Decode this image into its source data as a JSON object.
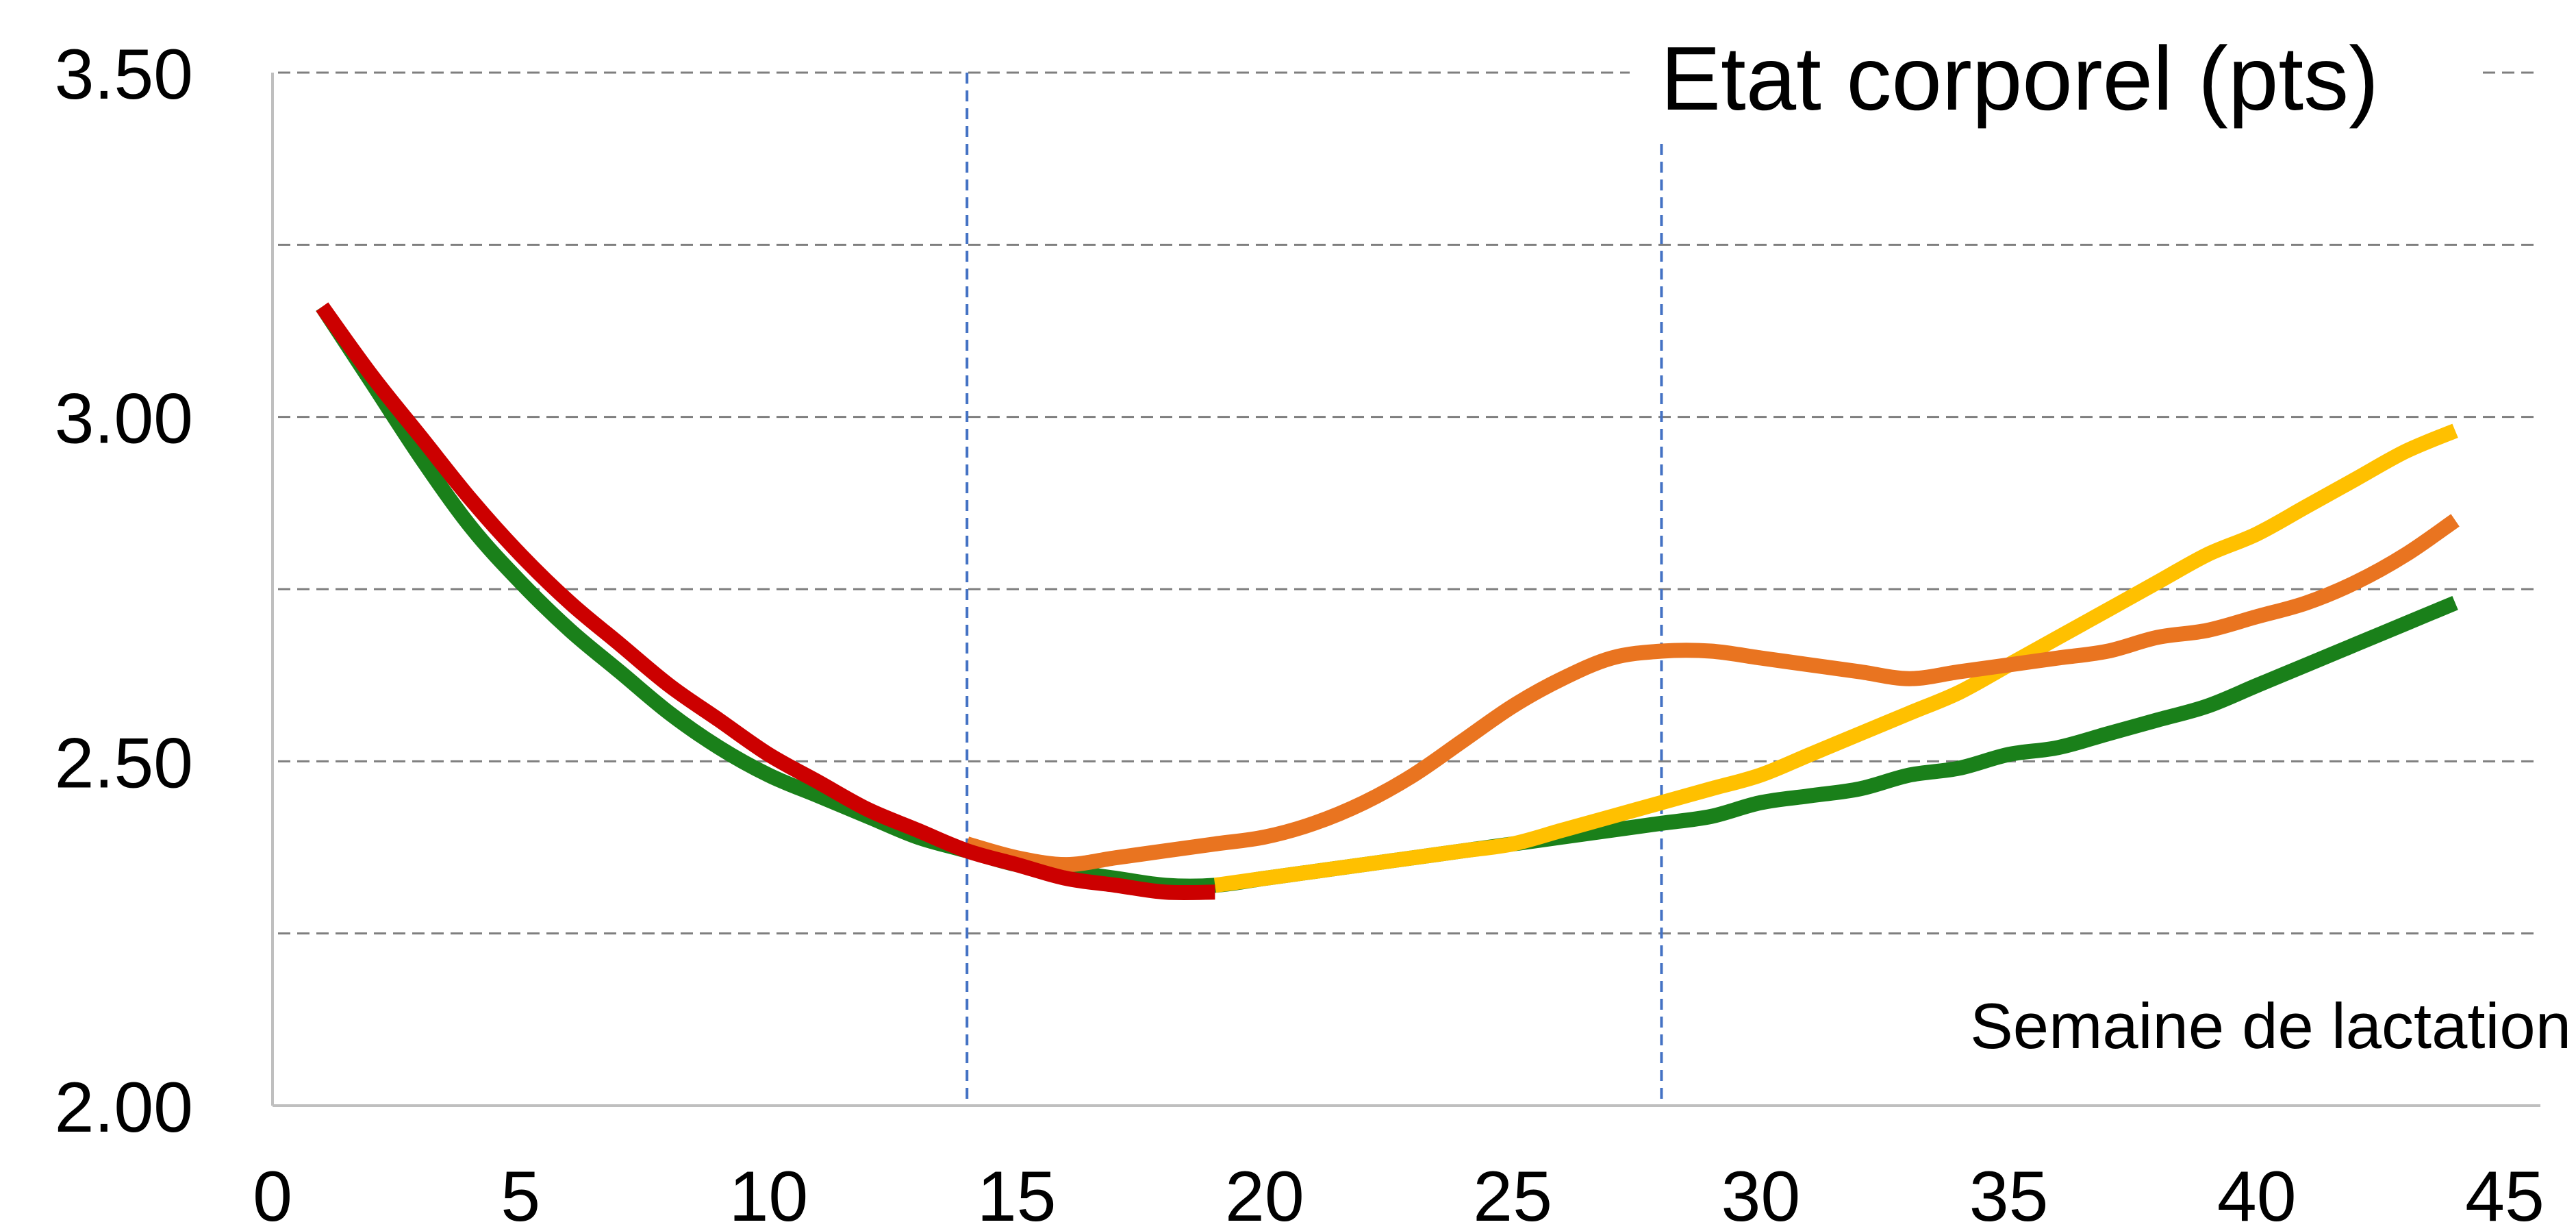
{
  "chart_data": {
    "type": "line",
    "title": "Etat corporel (pts)",
    "xlabel": "Semaine de lactation",
    "ylabel": "",
    "xlim": [
      0,
      45
    ],
    "ylim": [
      2.0,
      3.5
    ],
    "x_ticks": [
      "0",
      "5",
      "10",
      "15",
      "20",
      "25",
      "30",
      "35",
      "40",
      "45"
    ],
    "y_ticks": [
      "2.00",
      "2.50",
      "3.00",
      "3.50"
    ],
    "horizontal_gridlines": [
      2.25,
      2.5,
      2.75,
      3.0,
      3.25,
      3.5
    ],
    "vertical_reference_lines": [
      14,
      28
    ],
    "grid": true,
    "legend": "none",
    "series": [
      {
        "color": "#1a801a",
        "x": [
          1,
          2,
          3,
          4,
          5,
          6,
          7,
          8,
          9,
          10,
          11,
          12,
          13,
          14,
          15,
          16,
          17,
          18,
          19,
          20,
          21,
          22,
          23,
          24,
          25,
          26,
          27,
          28,
          29,
          30,
          31,
          32,
          33,
          34,
          35,
          36,
          37,
          38,
          39,
          40,
          41,
          42,
          43,
          44
        ],
        "values": [
          3.16,
          3.05,
          2.94,
          2.84,
          2.76,
          2.69,
          2.63,
          2.57,
          2.52,
          2.48,
          2.45,
          2.42,
          2.39,
          2.37,
          2.35,
          2.34,
          2.33,
          2.32,
          2.32,
          2.33,
          2.34,
          2.35,
          2.36,
          2.37,
          2.38,
          2.39,
          2.4,
          2.41,
          2.42,
          2.44,
          2.45,
          2.46,
          2.48,
          2.49,
          2.51,
          2.52,
          2.54,
          2.56,
          2.58,
          2.61,
          2.64,
          2.67,
          2.7,
          2.73
        ]
      },
      {
        "color": "#ffc000",
        "x": [
          19,
          20,
          21,
          22,
          23,
          24,
          25,
          26,
          27,
          28,
          29,
          30,
          31,
          32,
          33,
          34,
          35,
          36,
          37,
          38,
          39,
          40,
          41,
          42,
          43,
          44
        ],
        "values": [
          2.32,
          2.33,
          2.34,
          2.35,
          2.36,
          2.37,
          2.38,
          2.4,
          2.42,
          2.44,
          2.46,
          2.48,
          2.51,
          2.54,
          2.57,
          2.6,
          2.64,
          2.68,
          2.72,
          2.76,
          2.8,
          2.83,
          2.87,
          2.91,
          2.95,
          2.98
        ]
      },
      {
        "color": "#e97420",
        "x": [
          14,
          15,
          16,
          17,
          18,
          19,
          20,
          21,
          22,
          23,
          24,
          25,
          26,
          27,
          28,
          29,
          30,
          31,
          32,
          33,
          34,
          35,
          36,
          37,
          38,
          39,
          40,
          41,
          42,
          43,
          44
        ],
        "values": [
          2.38,
          2.36,
          2.35,
          2.36,
          2.37,
          2.38,
          2.39,
          2.41,
          2.44,
          2.48,
          2.53,
          2.58,
          2.62,
          2.65,
          2.66,
          2.66,
          2.65,
          2.64,
          2.63,
          2.62,
          2.63,
          2.64,
          2.65,
          2.66,
          2.68,
          2.69,
          2.71,
          2.73,
          2.76,
          2.8,
          2.85
        ]
      },
      {
        "color": "#cc0000",
        "x": [
          1,
          2,
          3,
          4,
          5,
          6,
          7,
          8,
          9,
          10,
          11,
          12,
          13,
          14,
          15,
          16,
          17,
          18,
          19
        ],
        "values": [
          3.16,
          3.06,
          2.97,
          2.88,
          2.8,
          2.73,
          2.67,
          2.61,
          2.56,
          2.51,
          2.47,
          2.43,
          2.4,
          2.37,
          2.35,
          2.33,
          2.32,
          2.31,
          2.31
        ]
      }
    ]
  }
}
